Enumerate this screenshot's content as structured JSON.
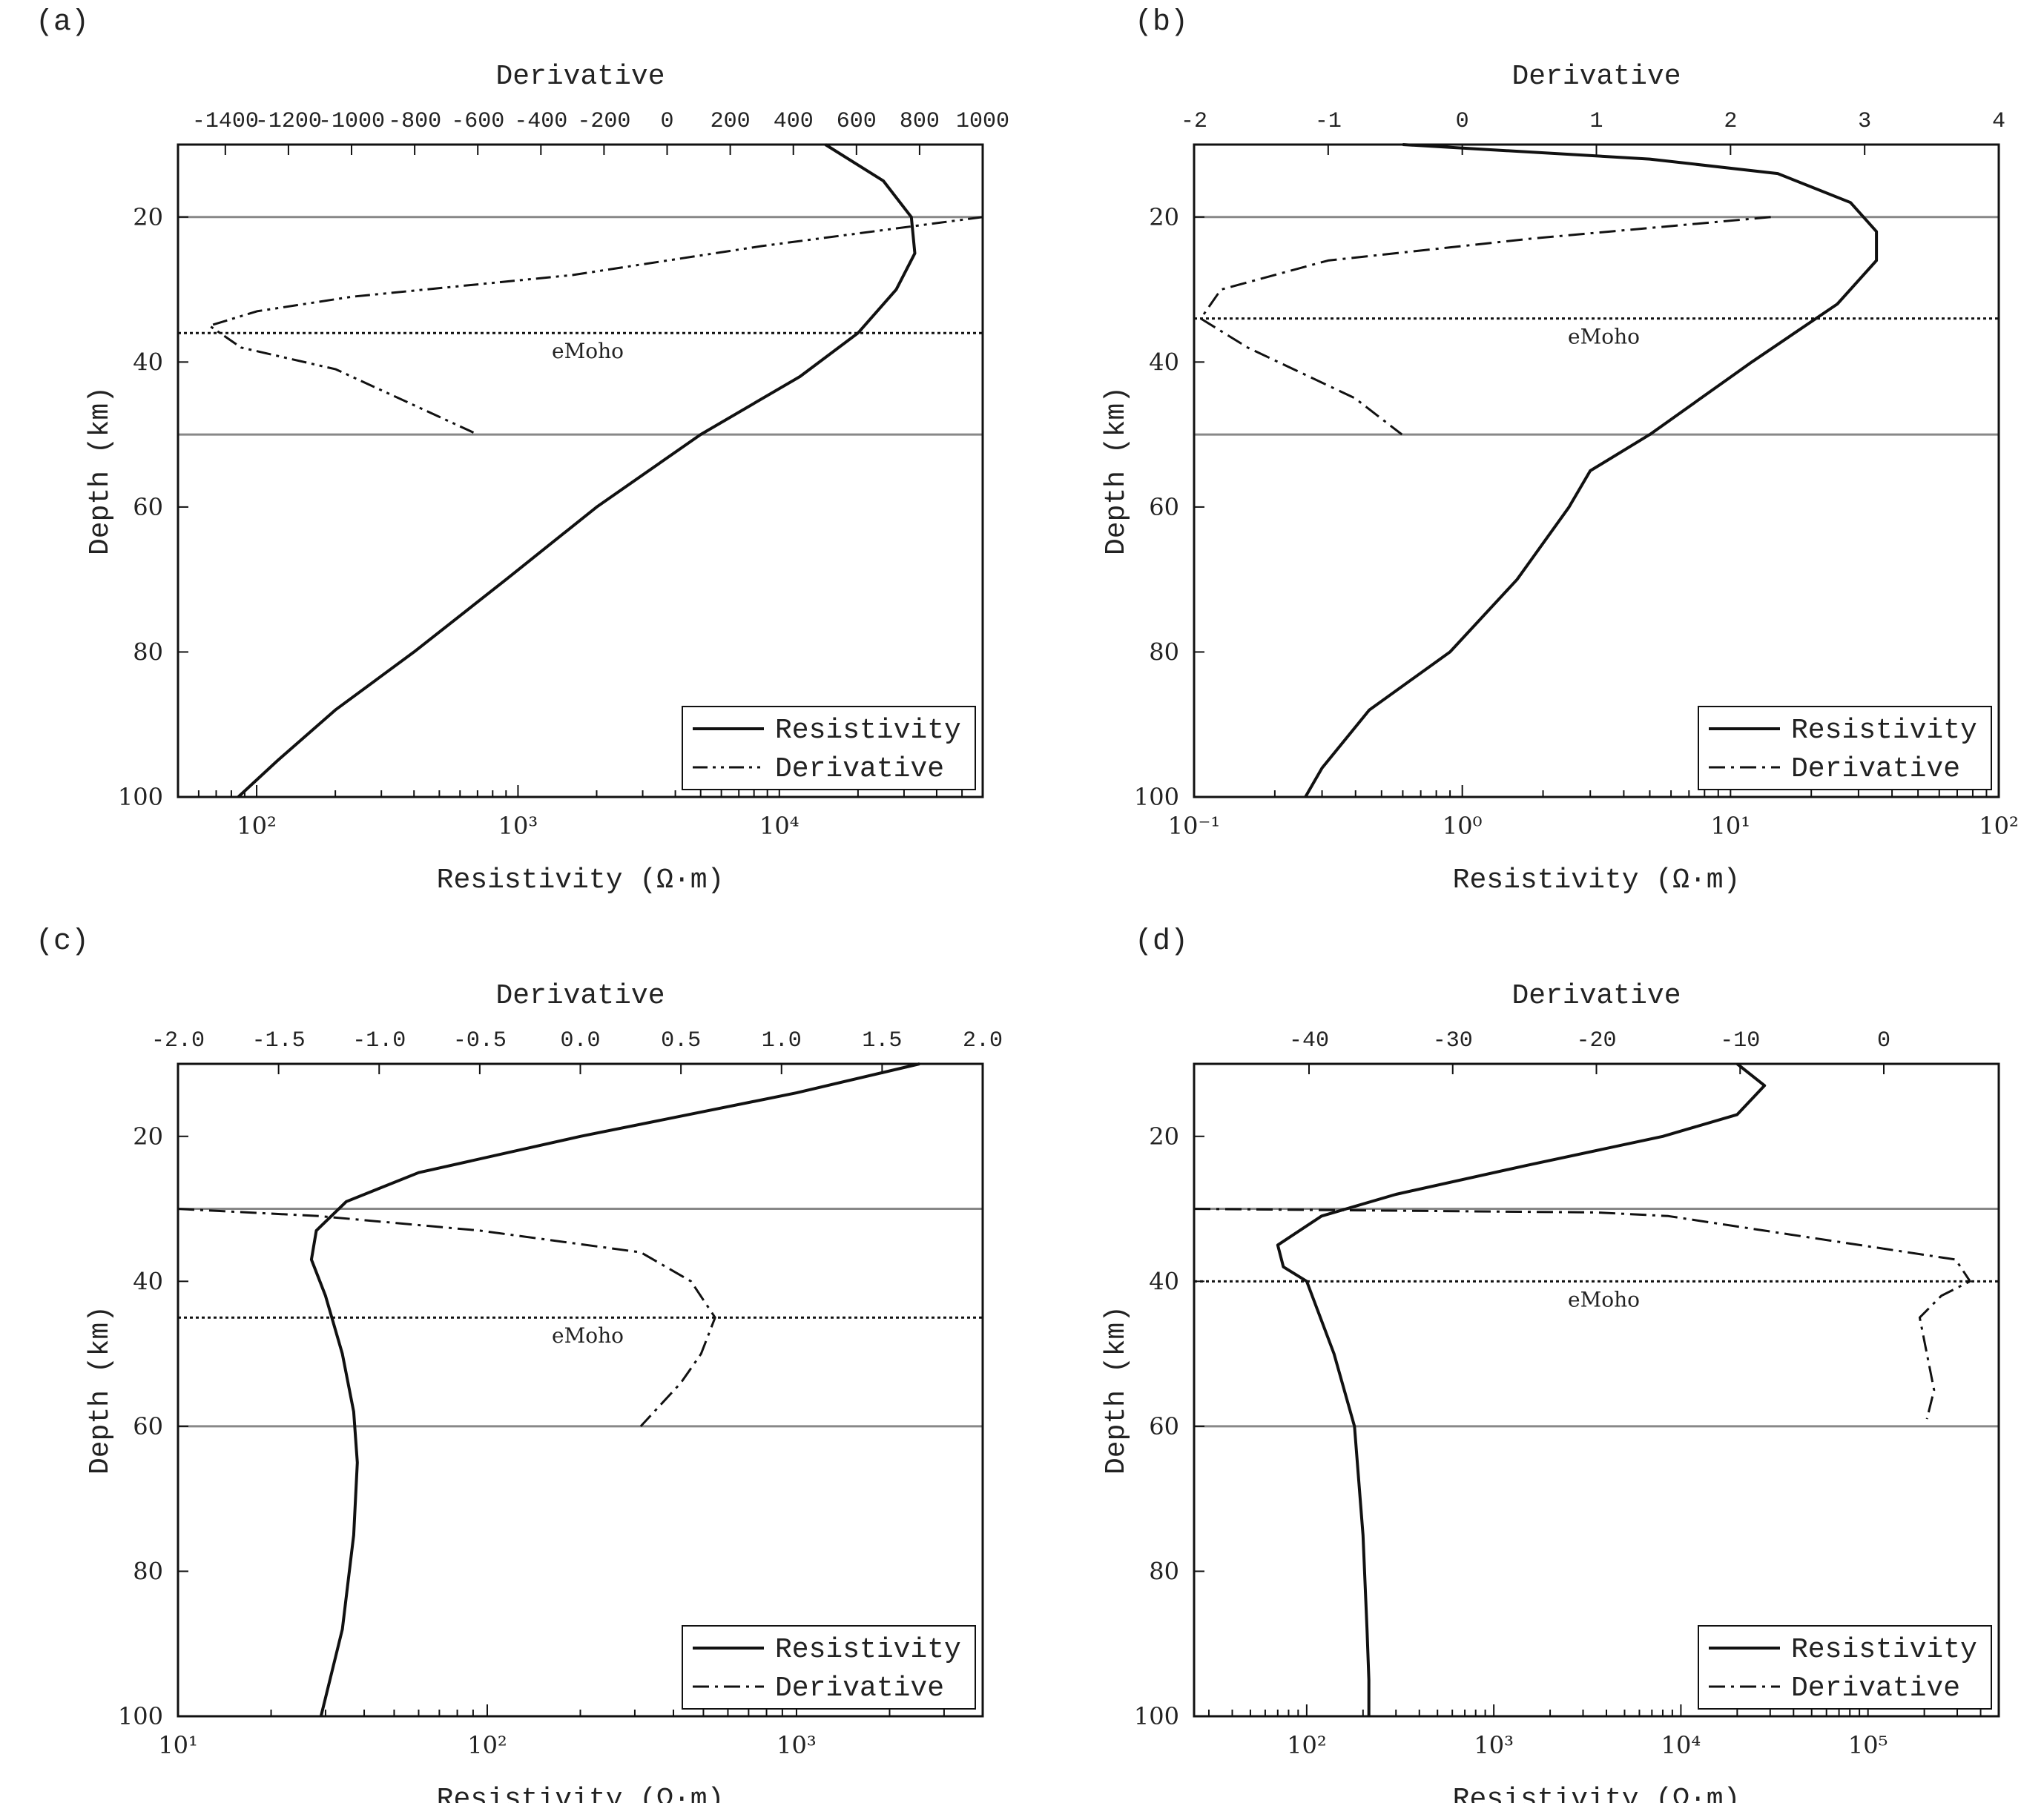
{
  "chart_data": [
    {
      "panel_label": "(a)",
      "type": "line",
      "xlabel": "Resistivity (Ω·m)",
      "x2label": "Derivative",
      "ylabel": "Depth (km)",
      "xscale": "log",
      "xlim": [
        50,
        60000
      ],
      "x2lim": [
        -1550,
        1000
      ],
      "ylim": [
        100,
        10
      ],
      "x_ticks": [
        {
          "v": 100,
          "label": "10²"
        },
        {
          "v": 1000,
          "label": "10³"
        },
        {
          "v": 10000,
          "label": "10⁴"
        }
      ],
      "x2_ticks": [
        "-1400",
        "-1200",
        "-1000",
        "-800",
        "-600",
        "-400",
        "-200",
        "0",
        "200",
        "400",
        "600",
        "800",
        "1000"
      ],
      "y_ticks": [
        "20",
        "40",
        "60",
        "80",
        "100"
      ],
      "hlines": [
        20,
        50
      ],
      "emoho": {
        "depth": 36,
        "label": "eMoho"
      },
      "legend": {
        "position": "bottom-right",
        "entries": [
          "Resistivity",
          "Derivative"
        ]
      },
      "series": [
        {
          "name": "Resistivity",
          "axis": "bottom",
          "style": "solid",
          "x": [
            15000,
            25000,
            32000,
            33000,
            28000,
            20000,
            12000,
            5000,
            2000,
            900,
            400,
            200,
            120,
            85
          ],
          "y": [
            10,
            15,
            20,
            25,
            30,
            36,
            42,
            50,
            60,
            70,
            80,
            88,
            95,
            100
          ]
        },
        {
          "name": "Derivative",
          "axis": "top",
          "style": "dash-dot-dot",
          "x": [
            1000,
            300,
            -300,
            -1000,
            -1300,
            -1450,
            -1350,
            -1050,
            -600
          ],
          "y": [
            20,
            24,
            28,
            31,
            33,
            35,
            38,
            41,
            50
          ]
        }
      ]
    },
    {
      "panel_label": "(b)",
      "type": "line",
      "xlabel": "Resistivity (Ω·m)",
      "x2label": "Derivative",
      "ylabel": "Depth (km)",
      "xscale": "log",
      "xlim": [
        0.1,
        100
      ],
      "x2lim": [
        -2,
        4
      ],
      "ylim": [
        100,
        10
      ],
      "x_ticks": [
        {
          "v": 0.1,
          "label": "10⁻¹"
        },
        {
          "v": 1,
          "label": "10⁰"
        },
        {
          "v": 10,
          "label": "10¹"
        },
        {
          "v": 100,
          "label": "10²"
        }
      ],
      "x2_ticks": [
        "-2",
        "-1",
        "0",
        "1",
        "2",
        "3",
        "4"
      ],
      "y_ticks": [
        "20",
        "40",
        "60",
        "80",
        "100"
      ],
      "hlines": [
        20,
        50
      ],
      "emoho": {
        "depth": 34,
        "label": "eMoho"
      },
      "legend": {
        "position": "bottom-right",
        "entries": [
          "Resistivity",
          "Derivative"
        ]
      },
      "series": [
        {
          "name": "Resistivity",
          "axis": "bottom",
          "style": "solid",
          "x": [
            0.6,
            5,
            15,
            28,
            35,
            35,
            25,
            12,
            5,
            3,
            2.5,
            1.6,
            0.9,
            0.45,
            0.3,
            0.26
          ],
          "y": [
            10,
            12,
            14,
            18,
            22,
            26,
            32,
            40,
            50,
            55,
            60,
            70,
            80,
            88,
            96,
            100
          ]
        },
        {
          "name": "Derivative",
          "axis": "top",
          "style": "dash-dot",
          "x": [
            2.3,
            0.5,
            -1.0,
            -1.8,
            -1.95,
            -1.6,
            -0.8,
            -0.45
          ],
          "y": [
            20,
            23,
            26,
            30,
            34,
            38,
            45,
            50
          ]
        }
      ]
    },
    {
      "panel_label": "(c)",
      "type": "line",
      "xlabel": "Resistivity (Ω·m)",
      "x2label": "Derivative",
      "ylabel": "Depth (km)",
      "xscale": "log",
      "xlim": [
        10,
        4000
      ],
      "x2lim": [
        -2,
        2
      ],
      "ylim": [
        100,
        10
      ],
      "x_ticks": [
        {
          "v": 10,
          "label": "10¹"
        },
        {
          "v": 100,
          "label": "10²"
        },
        {
          "v": 1000,
          "label": "10³"
        }
      ],
      "x2_ticks": [
        "-2.0",
        "-1.5",
        "-1.0",
        "-0.5",
        "0.0",
        "0.5",
        "1.0",
        "1.5",
        "2.0"
      ],
      "y_ticks": [
        "20",
        "40",
        "60",
        "80",
        "100"
      ],
      "hlines": [
        30,
        60
      ],
      "emoho": {
        "depth": 45,
        "label": "eMoho"
      },
      "legend": {
        "position": "bottom-right",
        "entries": [
          "Resistivity",
          "Derivative"
        ]
      },
      "series": [
        {
          "name": "Resistivity",
          "axis": "bottom",
          "style": "solid",
          "x": [
            2500,
            1000,
            200,
            60,
            35,
            28,
            27,
            30,
            34,
            37,
            38,
            37,
            34,
            29
          ],
          "y": [
            10,
            14,
            20,
            25,
            29,
            33,
            37,
            42,
            50,
            58,
            65,
            75,
            88,
            100
          ]
        },
        {
          "name": "Derivative",
          "axis": "top",
          "style": "dash-dot",
          "x": [
            -2.0,
            -1.3,
            -0.5,
            0.3,
            0.55,
            0.67,
            0.6,
            0.5,
            0.3
          ],
          "y": [
            30,
            31,
            33,
            36,
            40,
            45,
            50,
            54,
            60
          ]
        }
      ]
    },
    {
      "panel_label": "(d)",
      "type": "line",
      "xlabel": "Resistivity (Ω·m)",
      "x2label": "Derivative",
      "ylabel": "Depth (km)",
      "xscale": "log",
      "xlim": [
        25,
        500000
      ],
      "x2lim": [
        -48,
        8
      ],
      "ylim": [
        100,
        10
      ],
      "x_ticks": [
        {
          "v": 100,
          "label": "10²"
        },
        {
          "v": 1000,
          "label": "10³"
        },
        {
          "v": 10000,
          "label": "10⁴"
        },
        {
          "v": 100000,
          "label": "10⁵"
        }
      ],
      "x2_ticks": [
        "-40",
        "-30",
        "-20",
        "-10",
        "0"
      ],
      "y_ticks": [
        "20",
        "40",
        "60",
        "80",
        "100"
      ],
      "hlines": [
        30,
        60
      ],
      "emoho": {
        "depth": 40,
        "label": "eMoho"
      },
      "legend": {
        "position": "bottom-right",
        "entries": [
          "Resistivity",
          "Derivative"
        ]
      },
      "series": [
        {
          "name": "Resistivity",
          "axis": "bottom",
          "style": "solid",
          "x": [
            20000,
            28000,
            20000,
            8000,
            1500,
            300,
            120,
            70,
            75,
            100,
            140,
            180,
            200,
            210,
            215,
            215
          ],
          "y": [
            10,
            13,
            17,
            20,
            24,
            28,
            31,
            35,
            38,
            40,
            50,
            60,
            75,
            88,
            95,
            100
          ]
        },
        {
          "name": "Derivative",
          "axis": "top",
          "style": "dash-dot",
          "x": [
            -48,
            -20,
            -15,
            5,
            6,
            4,
            2.5,
            3,
            3.5,
            3
          ],
          "y": [
            30,
            30.5,
            31,
            37,
            40,
            42,
            45,
            50,
            55,
            59
          ]
        }
      ]
    }
  ]
}
